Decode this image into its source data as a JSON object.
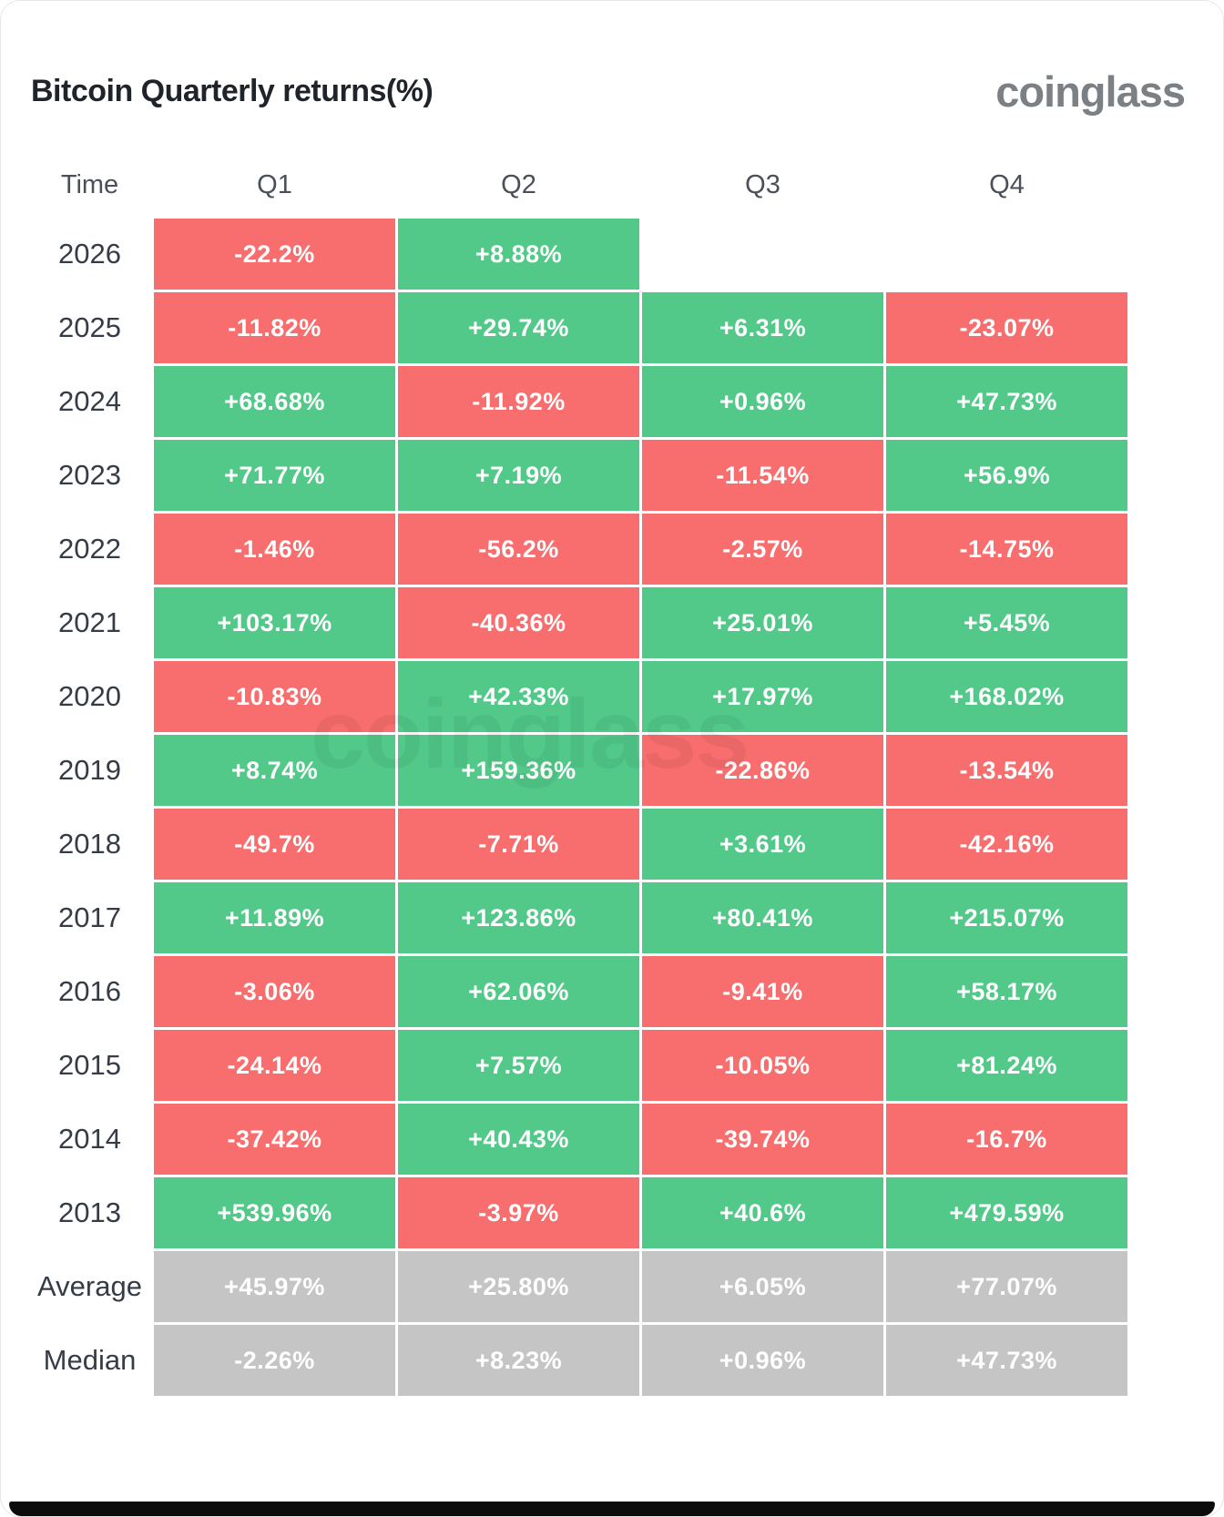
{
  "title": "Bitcoin Quarterly returns(%)",
  "logo": "coinglass",
  "watermark": "coinglass",
  "colors": {
    "positive": "#52c989",
    "negative": "#f86d6d",
    "neutral": "#c5c5c5",
    "title_text": "#1f242b",
    "logo_text": "#7b8084"
  },
  "table": {
    "headers": [
      "Time",
      "Q1",
      "Q2",
      "Q3",
      "Q4"
    ],
    "rows": [
      {
        "label": "2026",
        "cells": [
          {
            "text": "-22.2%",
            "type": "negative"
          },
          {
            "text": "+8.88%",
            "type": "positive"
          },
          null,
          null
        ]
      },
      {
        "label": "2025",
        "cells": [
          {
            "text": "-11.82%",
            "type": "negative"
          },
          {
            "text": "+29.74%",
            "type": "positive"
          },
          {
            "text": "+6.31%",
            "type": "positive"
          },
          {
            "text": "-23.07%",
            "type": "negative"
          }
        ]
      },
      {
        "label": "2024",
        "cells": [
          {
            "text": "+68.68%",
            "type": "positive"
          },
          {
            "text": "-11.92%",
            "type": "negative"
          },
          {
            "text": "+0.96%",
            "type": "positive"
          },
          {
            "text": "+47.73%",
            "type": "positive"
          }
        ]
      },
      {
        "label": "2023",
        "cells": [
          {
            "text": "+71.77%",
            "type": "positive"
          },
          {
            "text": "+7.19%",
            "type": "positive"
          },
          {
            "text": "-11.54%",
            "type": "negative"
          },
          {
            "text": "+56.9%",
            "type": "positive"
          }
        ]
      },
      {
        "label": "2022",
        "cells": [
          {
            "text": "-1.46%",
            "type": "negative"
          },
          {
            "text": "-56.2%",
            "type": "negative"
          },
          {
            "text": "-2.57%",
            "type": "negative"
          },
          {
            "text": "-14.75%",
            "type": "negative"
          }
        ]
      },
      {
        "label": "2021",
        "cells": [
          {
            "text": "+103.17%",
            "type": "positive"
          },
          {
            "text": "-40.36%",
            "type": "negative"
          },
          {
            "text": "+25.01%",
            "type": "positive"
          },
          {
            "text": "+5.45%",
            "type": "positive"
          }
        ]
      },
      {
        "label": "2020",
        "cells": [
          {
            "text": "-10.83%",
            "type": "negative"
          },
          {
            "text": "+42.33%",
            "type": "positive"
          },
          {
            "text": "+17.97%",
            "type": "positive"
          },
          {
            "text": "+168.02%",
            "type": "positive"
          }
        ]
      },
      {
        "label": "2019",
        "cells": [
          {
            "text": "+8.74%",
            "type": "positive"
          },
          {
            "text": "+159.36%",
            "type": "positive"
          },
          {
            "text": "-22.86%",
            "type": "negative"
          },
          {
            "text": "-13.54%",
            "type": "negative"
          }
        ]
      },
      {
        "label": "2018",
        "cells": [
          {
            "text": "-49.7%",
            "type": "negative"
          },
          {
            "text": "-7.71%",
            "type": "negative"
          },
          {
            "text": "+3.61%",
            "type": "positive"
          },
          {
            "text": "-42.16%",
            "type": "negative"
          }
        ]
      },
      {
        "label": "2017",
        "cells": [
          {
            "text": "+11.89%",
            "type": "positive"
          },
          {
            "text": "+123.86%",
            "type": "positive"
          },
          {
            "text": "+80.41%",
            "type": "positive"
          },
          {
            "text": "+215.07%",
            "type": "positive"
          }
        ]
      },
      {
        "label": "2016",
        "cells": [
          {
            "text": "-3.06%",
            "type": "negative"
          },
          {
            "text": "+62.06%",
            "type": "positive"
          },
          {
            "text": "-9.41%",
            "type": "negative"
          },
          {
            "text": "+58.17%",
            "type": "positive"
          }
        ]
      },
      {
        "label": "2015",
        "cells": [
          {
            "text": "-24.14%",
            "type": "negative"
          },
          {
            "text": "+7.57%",
            "type": "positive"
          },
          {
            "text": "-10.05%",
            "type": "negative"
          },
          {
            "text": "+81.24%",
            "type": "positive"
          }
        ]
      },
      {
        "label": "2014",
        "cells": [
          {
            "text": "-37.42%",
            "type": "negative"
          },
          {
            "text": "+40.43%",
            "type": "positive"
          },
          {
            "text": "-39.74%",
            "type": "negative"
          },
          {
            "text": "-16.7%",
            "type": "negative"
          }
        ]
      },
      {
        "label": "2013",
        "cells": [
          {
            "text": "+539.96%",
            "type": "positive"
          },
          {
            "text": "-3.97%",
            "type": "negative"
          },
          {
            "text": "+40.6%",
            "type": "positive"
          },
          {
            "text": "+479.59%",
            "type": "positive"
          }
        ]
      },
      {
        "label": "Average",
        "cells": [
          {
            "text": "+45.97%",
            "type": "neutral"
          },
          {
            "text": "+25.80%",
            "type": "neutral"
          },
          {
            "text": "+6.05%",
            "type": "neutral"
          },
          {
            "text": "+77.07%",
            "type": "neutral"
          }
        ]
      },
      {
        "label": "Median",
        "cells": [
          {
            "text": "-2.26%",
            "type": "neutral"
          },
          {
            "text": "+8.23%",
            "type": "neutral"
          },
          {
            "text": "+0.96%",
            "type": "neutral"
          },
          {
            "text": "+47.73%",
            "type": "neutral"
          }
        ]
      }
    ]
  },
  "chart_data": {
    "type": "heatmap",
    "title": "Bitcoin Quarterly returns(%)",
    "columns": [
      "Q1",
      "Q2",
      "Q3",
      "Q4"
    ],
    "rows": [
      "2026",
      "2025",
      "2024",
      "2023",
      "2022",
      "2021",
      "2020",
      "2019",
      "2018",
      "2017",
      "2016",
      "2015",
      "2014",
      "2013",
      "Average",
      "Median"
    ],
    "values": [
      [
        -22.2,
        8.88,
        null,
        null
      ],
      [
        -11.82,
        29.74,
        6.31,
        -23.07
      ],
      [
        68.68,
        -11.92,
        0.96,
        47.73
      ],
      [
        71.77,
        7.19,
        -11.54,
        56.9
      ],
      [
        -1.46,
        -56.2,
        -2.57,
        -14.75
      ],
      [
        103.17,
        -40.36,
        25.01,
        5.45
      ],
      [
        -10.83,
        42.33,
        17.97,
        168.02
      ],
      [
        8.74,
        159.36,
        -22.86,
        -13.54
      ],
      [
        -49.7,
        -7.71,
        3.61,
        -42.16
      ],
      [
        11.89,
        123.86,
        80.41,
        215.07
      ],
      [
        -3.06,
        62.06,
        -9.41,
        58.17
      ],
      [
        -24.14,
        7.57,
        -10.05,
        81.24
      ],
      [
        -37.42,
        40.43,
        -39.74,
        -16.7
      ],
      [
        539.96,
        -3.97,
        40.6,
        479.59
      ],
      [
        45.97,
        25.8,
        6.05,
        77.07
      ],
      [
        -2.26,
        8.23,
        0.96,
        47.73
      ]
    ],
    "legend": "green = positive quarter, red = negative quarter, gray = summary rows (Average/Median)",
    "unit": "%"
  }
}
